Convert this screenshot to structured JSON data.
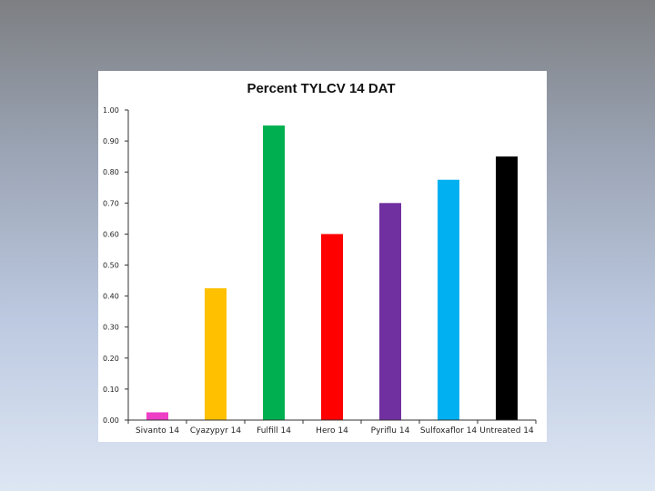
{
  "chart_data": {
    "type": "bar",
    "title": "Percent TYLCV  14 DAT",
    "xlabel": "",
    "ylabel": "",
    "categories": [
      "Sivanto 14",
      "Cyazypyr 14",
      "Fulfill 14",
      "Hero 14",
      "Pyriflu 14",
      "Sulfoxaflor 14",
      "Untreated 14"
    ],
    "values": [
      0.025,
      0.425,
      0.95,
      0.6,
      0.7,
      0.775,
      0.85
    ],
    "colors": [
      "#ee3fc7",
      "#ffc000",
      "#00b050",
      "#ff0000",
      "#7030a0",
      "#00b0f0",
      "#000000"
    ],
    "ylim": [
      0,
      1.0
    ],
    "yticks": [
      "0.00",
      "0.10",
      "0.20",
      "0.30",
      "0.40",
      "0.50",
      "0.60",
      "0.70",
      "0.80",
      "0.90",
      "1.00"
    ],
    "grid": false,
    "legend": "none"
  }
}
